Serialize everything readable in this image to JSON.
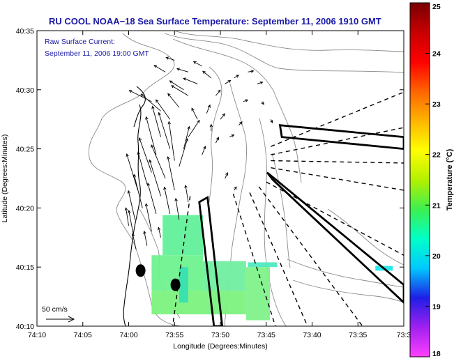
{
  "header": {
    "title": "RU COOL  NOAA−18  Sea Surface Temperature:  September 11, 2006 1910 GMT"
  },
  "inset": {
    "line1": "Raw Surface Current:",
    "line2": "September 11, 2006 19:00 GMT"
  },
  "scale_legend": {
    "label": "50 cm/s"
  },
  "colors": {
    "title_text": "#1a1aa8",
    "land": "#ffffff",
    "coast_line": "#000000",
    "bathymetry_contour": "#8a8a8a",
    "vector_arrow": "#000000",
    "exclusion_box": "#000000"
  },
  "chart_data": {
    "type": "map",
    "title": "RU COOL  NOAA−18  Sea Surface Temperature:  September 11, 2006 1910 GMT",
    "xlabel": "Longitude (Degrees:Minutes)",
    "ylabel": "Latitude (Degrees:Minutes)",
    "x_ticks": [
      "74:10",
      "74:05",
      "74:00",
      "73:55",
      "73:50",
      "73:45",
      "73:40",
      "73:35",
      "73:3"
    ],
    "y_ticks": [
      "40:10",
      "40:15",
      "40:20",
      "40:25",
      "40:30",
      "40:35"
    ],
    "xlim_minutes_west": [
      10,
      30
    ],
    "ylim_minutes_north": [
      10,
      35
    ],
    "colorbar": {
      "label": "Temperature (°C)",
      "min": 18,
      "max": 25,
      "ticks": [
        "18",
        "19",
        "20",
        "21",
        "22",
        "23",
        "24",
        "25"
      ],
      "colormap": [
        "#ff40ff",
        "#a020f0",
        "#1e1ee6",
        "#00c8ff",
        "#00ffc8",
        "#3cf050",
        "#b4f000",
        "#ffff00",
        "#ffb400",
        "#ff6400",
        "#ff0000",
        "#c80000",
        "#780000"
      ]
    },
    "sst_patches": [
      {
        "lon_range": [
          56.3,
          51.9
        ],
        "lat_range": [
          16.0,
          19.4
        ],
        "color": "#62f09a"
      },
      {
        "lon_range": [
          57.5,
          51.9
        ],
        "lat_range": [
          13.0,
          16.0
        ],
        "color": "#6ff28e"
      },
      {
        "lon_range": [
          57.5,
          47.2
        ],
        "lat_range": [
          11.0,
          13.0
        ],
        "color": "#7df27f"
      },
      {
        "lon_range": [
          51.9,
          47.2
        ],
        "lat_range": [
          13.0,
          15.5
        ],
        "color": "#70eea0"
      },
      {
        "lon_range": [
          47.2,
          44.6
        ],
        "lat_range": [
          10.5,
          15.0
        ],
        "color": "#80f28a"
      },
      {
        "lon_range": [
          54.5,
          53.5
        ],
        "lat_range": [
          12.0,
          15.0
        ],
        "color": "#38e0b0"
      },
      {
        "lon_range": [
          47.0,
          43.8
        ],
        "lat_range": [
          15.0,
          15.4
        ],
        "color": "#50e8c0"
      },
      {
        "lon_range": [
          33.1,
          31.2
        ],
        "lat_range": [
          14.7,
          15.1
        ],
        "color": "#20e8e8"
      }
    ],
    "points": [
      {
        "lon": 58.7,
        "lat": 14.7
      },
      {
        "lon": 54.9,
        "lat": 13.5
      }
    ],
    "vectors": [
      {
        "lon": 56.5,
        "lat": 26.0,
        "u": -1.5,
        "v": 5.5
      },
      {
        "lon": 55.5,
        "lat": 25.0,
        "u": -2.0,
        "v": 6.5
      },
      {
        "lon": 55.0,
        "lat": 24.0,
        "u": -1.0,
        "v": 7.0
      },
      {
        "lon": 56.0,
        "lat": 22.5,
        "u": -2.5,
        "v": 6.0
      },
      {
        "lon": 56.5,
        "lat": 21.0,
        "u": -2.0,
        "v": 6.5
      },
      {
        "lon": 57.0,
        "lat": 19.5,
        "u": -1.5,
        "v": 5.5
      },
      {
        "lon": 57.5,
        "lat": 18.0,
        "u": -1.0,
        "v": 5.0
      },
      {
        "lon": 58.5,
        "lat": 20.0,
        "u": -1.5,
        "v": 6.0
      },
      {
        "lon": 59.0,
        "lat": 21.5,
        "u": -2.0,
        "v": 6.5
      },
      {
        "lon": 59.3,
        "lat": 19.0,
        "u": -1.2,
        "v": 5.2
      },
      {
        "lon": 59.5,
        "lat": 17.8,
        "u": -0.8,
        "v": 4.2
      },
      {
        "lon": 57.0,
        "lat": 24.5,
        "u": -1.8,
        "v": 6.8
      },
      {
        "lon": 57.5,
        "lat": 23.0,
        "u": -2.2,
        "v": 6.2
      },
      {
        "lon": 58.0,
        "lat": 22.0,
        "u": -1.6,
        "v": 5.8
      },
      {
        "lon": 55.0,
        "lat": 21.5,
        "u": -1.2,
        "v": 6.0
      },
      {
        "lon": 54.5,
        "lat": 23.5,
        "u": 1.5,
        "v": 5.0
      },
      {
        "lon": 54.0,
        "lat": 25.0,
        "u": 1.0,
        "v": 4.0
      },
      {
        "lon": 53.5,
        "lat": 26.0,
        "u": 2.0,
        "v": 3.0
      },
      {
        "lon": 55.5,
        "lat": 19.5,
        "u": -1.0,
        "v": 4.8
      },
      {
        "lon": 54.5,
        "lat": 19.0,
        "u": -0.6,
        "v": 3.8
      },
      {
        "lon": 53.5,
        "lat": 20.5,
        "u": -0.5,
        "v": 3.0
      },
      {
        "lon": 55.5,
        "lat": 27.5,
        "u": -2.5,
        "v": 3.5
      },
      {
        "lon": 56.5,
        "lat": 28.2,
        "u": -3.5,
        "v": 3.0
      },
      {
        "lon": 57.5,
        "lat": 29.0,
        "u": -4.0,
        "v": 2.0
      },
      {
        "lon": 54.5,
        "lat": 28.5,
        "u": -2.0,
        "v": 2.5
      },
      {
        "lon": 53.5,
        "lat": 29.5,
        "u": -3.0,
        "v": 1.8
      },
      {
        "lon": 52.5,
        "lat": 30.5,
        "u": -2.5,
        "v": 1.0
      },
      {
        "lon": 53.5,
        "lat": 31.5,
        "u": -2.0,
        "v": 0.6
      },
      {
        "lon": 52.0,
        "lat": 32.0,
        "u": -1.5,
        "v": 0.8
      },
      {
        "lon": 51.0,
        "lat": 31.0,
        "u": -1.5,
        "v": 1.2
      },
      {
        "lon": 50.5,
        "lat": 29.5,
        "u": 0.8,
        "v": 1.0
      },
      {
        "lon": 49.5,
        "lat": 30.5,
        "u": 1.0,
        "v": 0.6
      },
      {
        "lon": 48.5,
        "lat": 31.0,
        "u": 0.8,
        "v": 0.5
      },
      {
        "lon": 51.5,
        "lat": 28.0,
        "u": 0.6,
        "v": 1.5
      },
      {
        "lon": 50.0,
        "lat": 27.5,
        "u": 0.8,
        "v": 1.0
      },
      {
        "lon": 52.5,
        "lat": 27.5,
        "u": -1.0,
        "v": 2.0
      },
      {
        "lon": 51.0,
        "lat": 26.5,
        "u": 0.0,
        "v": 1.2
      },
      {
        "lon": 50.5,
        "lat": 25.5,
        "u": 0.5,
        "v": 1.0
      },
      {
        "lon": 52.0,
        "lat": 24.5,
        "u": 0.6,
        "v": 1.5
      },
      {
        "lon": 49.0,
        "lat": 26.0,
        "u": 0.8,
        "v": 0.4
      },
      {
        "lon": 48.0,
        "lat": 27.0,
        "u": 0.6,
        "v": 0.6
      },
      {
        "lon": 47.5,
        "lat": 29.0,
        "u": 0.8,
        "v": 0.3
      },
      {
        "lon": 46.0,
        "lat": 30.5,
        "u": 1.0,
        "v": 0.3
      },
      {
        "lon": 45.5,
        "lat": 29.0,
        "u": 0.4,
        "v": -0.5
      },
      {
        "lon": 44.5,
        "lat": 27.5,
        "u": 0.3,
        "v": -0.6
      },
      {
        "lon": 47.0,
        "lat": 31.5,
        "u": 1.0,
        "v": 0.2
      },
      {
        "lon": 49.5,
        "lat": 22.5,
        "u": 0.5,
        "v": 1.0
      },
      {
        "lon": 48.5,
        "lat": 21.5,
        "u": 0.4,
        "v": 0.6
      },
      {
        "lon": 56.5,
        "lat": 17.5,
        "u": -0.4,
        "v": 1.8
      },
      {
        "lon": 58.0,
        "lat": 16.8,
        "u": -0.5,
        "v": 2.6
      },
      {
        "lon": 59.2,
        "lat": 16.5,
        "u": -0.6,
        "v": 2.8
      },
      {
        "lon": 60.0,
        "lat": 18.5,
        "u": -0.5,
        "v": 3.2
      },
      {
        "lon": 55.0,
        "lat": 32.5,
        "u": -1.5,
        "v": 0.5
      },
      {
        "lon": 56.0,
        "lat": 31.5,
        "u": -2.0,
        "v": 1.2
      },
      {
        "lon": 54.0,
        "lat": 30.0,
        "u": -2.5,
        "v": 1.6
      }
    ],
    "exclusion_boxes": [
      {
        "corners": [
          [
            52.3,
            20.5
          ],
          [
            51.4,
            20.9
          ],
          [
            49.8,
            10.0
          ],
          [
            50.7,
            10.0
          ]
        ]
      },
      {
        "corners": [
          [
            43.5,
            27.0
          ],
          [
            43.3,
            26.0
          ],
          [
            30.0,
            25.0
          ],
          [
            30.0,
            26.0
          ]
        ]
      },
      {
        "corners": [
          [
            44.9,
            23.0
          ],
          [
            44.3,
            22.4
          ],
          [
            30.0,
            12.0
          ],
          [
            30.0,
            13.5
          ]
        ]
      }
    ],
    "fan_lines": [
      {
        "from": [
          44.5,
          25.2
        ],
        "to": [
          30.0,
          29.8
        ]
      },
      {
        "from": [
          44.5,
          24.5
        ],
        "to": [
          30.0,
          26.8
        ]
      },
      {
        "from": [
          44.5,
          24.0
        ],
        "to": [
          30.0,
          23.8
        ]
      },
      {
        "from": [
          44.5,
          23.4
        ],
        "to": [
          30.0,
          21.5
        ]
      },
      {
        "from": [
          45.0,
          22.2
        ],
        "to": [
          30.0,
          16.0
        ]
      },
      {
        "from": [
          45.8,
          21.8
        ],
        "to": [
          34.5,
          10.0
        ]
      },
      {
        "from": [
          46.8,
          21.3
        ],
        "to": [
          40.5,
          10.0
        ]
      },
      {
        "from": [
          48.6,
          21.2
        ],
        "to": [
          44.0,
          10.0
        ]
      },
      {
        "from": [
          53.3,
          21.0
        ],
        "to": [
          55.2,
          10.0
        ]
      }
    ]
  }
}
